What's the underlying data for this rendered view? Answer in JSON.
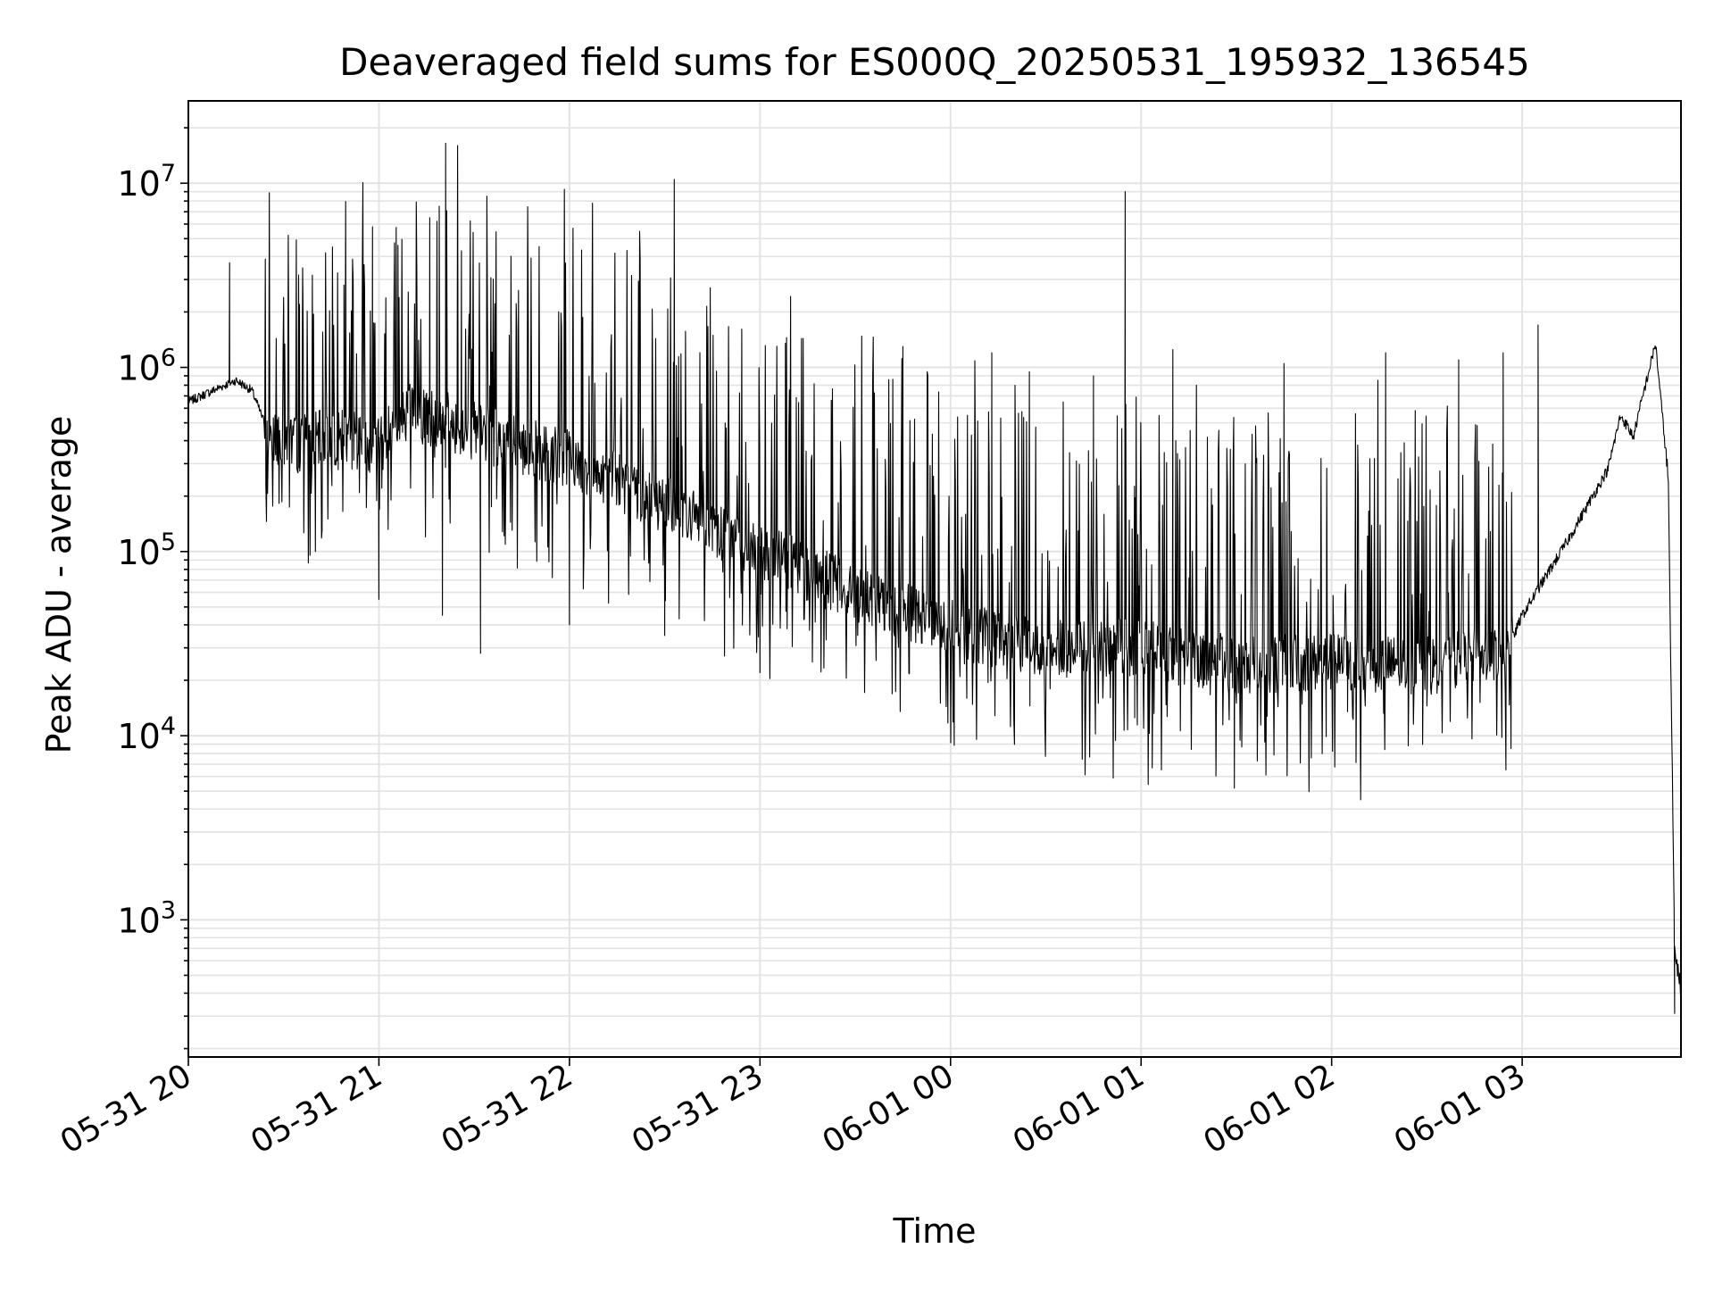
{
  "chart_data": {
    "type": "line",
    "title": "Deaveraged field sums for ES000Q_20250531_195932_136545",
    "xlabel": "Time",
    "ylabel": "Peak ADU - average",
    "y_scale": "log",
    "ylim": [
      180,
      28000000
    ],
    "xlim": [
      "2025-05-31T20:00",
      "2025-06-01T03:50"
    ],
    "grid": true,
    "legend": "none",
    "line_color": "#000000",
    "x_ticks": [
      {
        "t": "2025-05-31T20:00",
        "label": "05-31 20"
      },
      {
        "t": "2025-05-31T21:00",
        "label": "05-31 21"
      },
      {
        "t": "2025-05-31T22:00",
        "label": "05-31 22"
      },
      {
        "t": "2025-05-31T23:00",
        "label": "05-31 23"
      },
      {
        "t": "2025-06-01T00:00",
        "label": "06-01 00"
      },
      {
        "t": "2025-06-01T01:00",
        "label": "06-01 01"
      },
      {
        "t": "2025-06-01T02:00",
        "label": "06-01 02"
      },
      {
        "t": "2025-06-01T03:00",
        "label": "06-01 03"
      }
    ],
    "y_ticks": [
      {
        "value": 1000,
        "base": "10",
        "exp": "3"
      },
      {
        "value": 10000,
        "base": "10",
        "exp": "4"
      },
      {
        "value": 100000,
        "base": "10",
        "exp": "5"
      },
      {
        "value": 1000000,
        "base": "10",
        "exp": "6"
      },
      {
        "value": 10000000,
        "base": "10",
        "exp": "7"
      }
    ],
    "series": [
      {
        "baseline": [
          [
            "2025-05-31T20:00",
            650000
          ],
          [
            "2025-05-31T20:10",
            780000
          ],
          [
            "2025-05-31T20:15",
            850000
          ],
          [
            "2025-05-31T20:20",
            750000
          ],
          [
            "2025-05-31T20:25",
            450000
          ],
          [
            "2025-05-31T20:35",
            380000
          ],
          [
            "2025-05-31T20:45",
            420000
          ],
          [
            "2025-05-31T21:00",
            380000
          ],
          [
            "2025-05-31T21:10",
            600000
          ],
          [
            "2025-05-31T21:30",
            450000
          ],
          [
            "2025-05-31T22:00",
            320000
          ],
          [
            "2025-05-31T22:30",
            180000
          ],
          [
            "2025-05-31T23:00",
            100000
          ],
          [
            "2025-05-31T23:30",
            60000
          ],
          [
            "2025-06-01T00:00",
            38000
          ],
          [
            "2025-06-01T00:30",
            30000
          ],
          [
            "2025-06-01T01:00",
            30000
          ],
          [
            "2025-06-01T01:30",
            24000
          ],
          [
            "2025-06-01T02:00",
            25000
          ],
          [
            "2025-06-01T02:30",
            24000
          ],
          [
            "2025-06-01T02:55",
            28000
          ],
          [
            "2025-06-01T03:00",
            45000
          ],
          [
            "2025-06-01T03:15",
            120000
          ],
          [
            "2025-06-01T03:27",
            280000
          ],
          [
            "2025-06-01T03:31",
            550000
          ],
          [
            "2025-06-01T03:35",
            420000
          ],
          [
            "2025-06-01T03:38",
            700000
          ],
          [
            "2025-06-01T03:42",
            1350000
          ],
          [
            "2025-06-01T03:46",
            250000
          ],
          [
            "2025-06-01T03:48",
            700
          ],
          [
            "2025-06-01T03:50",
            420
          ]
        ],
        "spikes": [
          [
            "2025-05-31T20:13",
            3700000
          ],
          [
            "2025-05-31T20:30",
            2400000
          ],
          [
            "2025-05-31T20:35",
            2200000
          ],
          [
            "2025-05-31T20:49",
            2800000
          ],
          [
            "2025-05-31T20:58",
            5800000
          ],
          [
            "2025-05-31T21:06",
            4600000
          ],
          [
            "2025-05-31T21:16",
            6500000
          ],
          [
            "2025-05-31T21:19",
            7500000
          ],
          [
            "2025-05-31T21:21",
            16500000
          ],
          [
            "2025-05-31T21:26",
            4300000
          ],
          [
            "2025-05-31T22:33",
            10500000
          ],
          [
            "2025-05-31T23:08",
            1350000
          ],
          [
            "2025-05-31T23:45",
            1300000
          ],
          [
            "2025-06-01T00:13",
            1200000
          ],
          [
            "2025-06-01T00:45",
            900000
          ],
          [
            "2025-06-01T00:55",
            9000000
          ],
          [
            "2025-06-01T01:10",
            1250000
          ],
          [
            "2025-06-01T01:45",
            1050000
          ],
          [
            "2025-06-01T02:17",
            1200000
          ],
          [
            "2025-06-01T02:40",
            1100000
          ],
          [
            "2025-06-01T02:54",
            1200000
          ],
          [
            "2025-06-01T03:05",
            1700000
          ]
        ],
        "dips": [
          [
            "2025-05-31T20:40",
            100000
          ],
          [
            "2025-05-31T21:00",
            55000
          ],
          [
            "2025-05-31T21:20",
            45000
          ],
          [
            "2025-05-31T21:32",
            28000
          ],
          [
            "2025-05-31T22:00",
            40000
          ],
          [
            "2025-05-31T22:30",
            35000
          ],
          [
            "2025-05-31T23:00",
            22000
          ],
          [
            "2025-06-01T00:00",
            17000
          ],
          [
            "2025-06-01T00:25",
            14500
          ],
          [
            "2025-06-01T00:58",
            12500
          ],
          [
            "2025-06-01T01:30",
            15000
          ],
          [
            "2025-06-01T02:05",
            13500
          ],
          [
            "2025-06-01T02:30",
            14500
          ],
          [
            "2025-06-01T03:48",
            310
          ]
        ]
      }
    ]
  }
}
